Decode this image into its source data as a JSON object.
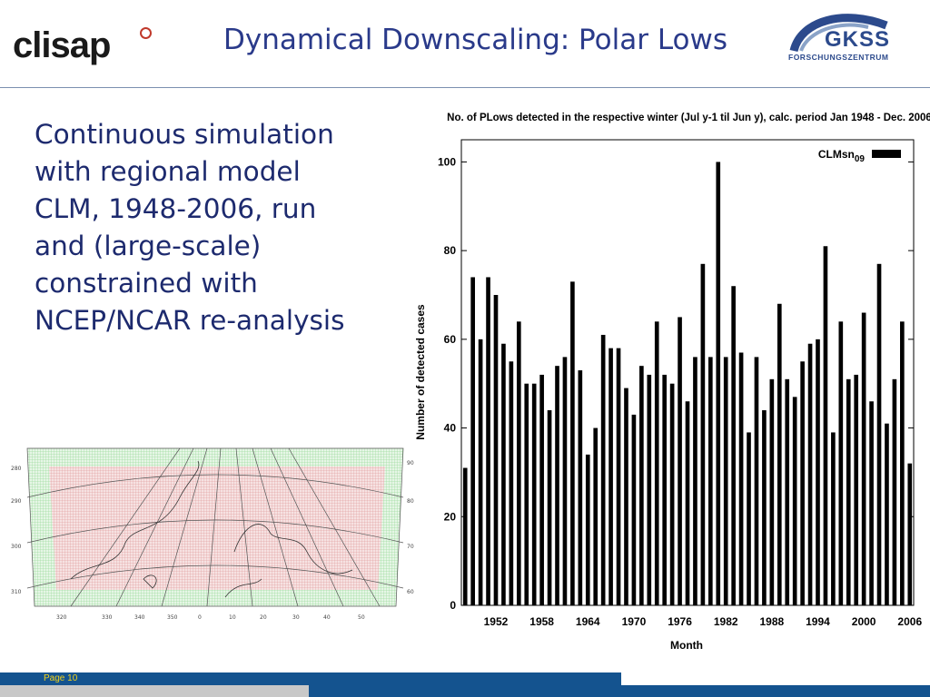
{
  "header": {
    "left_logo": "clisap",
    "title": "Dynamical Downscaling: Polar Lows",
    "right_logo_main": "GKSS",
    "right_logo_sub": "FORSCHUNGSZENTRUM"
  },
  "body": {
    "lines": [
      "Continuous simulation",
      "with regional model",
      "CLM, 1948-2006, run",
      "and (large-scale)",
      "constrained with",
      "NCEP/NCAR re-analysis"
    ]
  },
  "footer": {
    "page_label": "Page 10"
  },
  "colors": {
    "title": "#2a3a8a",
    "bars": "#000000",
    "footer_blue": "#14538f",
    "footer_gray": "#c8c8c8",
    "page_text": "#f2d21a"
  },
  "chart_data": {
    "type": "bar",
    "title": "No. of PLows detected in the respective winter (Jul y-1 til Jun y), calc. period Jan 1948 - Dec. 2006",
    "xlabel": "Month",
    "ylabel": "Number of detected cases",
    "ylim": [
      0,
      105
    ],
    "yticks": [
      0,
      20,
      40,
      60,
      80,
      100
    ],
    "xticks": [
      1952,
      1958,
      1964,
      1970,
      1976,
      1982,
      1988,
      1994,
      2000,
      2006
    ],
    "xrange": [
      1948,
      2006
    ],
    "grid": false,
    "legend_position": "top-right",
    "series": [
      {
        "name": "CLMsn09",
        "x": [
          1948,
          1949,
          1950,
          1951,
          1952,
          1953,
          1954,
          1955,
          1956,
          1957,
          1958,
          1959,
          1960,
          1961,
          1962,
          1963,
          1964,
          1965,
          1966,
          1967,
          1968,
          1969,
          1970,
          1971,
          1972,
          1973,
          1974,
          1975,
          1976,
          1977,
          1978,
          1979,
          1980,
          1981,
          1982,
          1983,
          1984,
          1985,
          1986,
          1987,
          1988,
          1989,
          1990,
          1991,
          1992,
          1993,
          1994,
          1995,
          1996,
          1997,
          1998,
          1999,
          2000,
          2001,
          2002,
          2003,
          2004,
          2005,
          2006
        ],
        "values": [
          31,
          74,
          60,
          74,
          70,
          59,
          55,
          64,
          50,
          50,
          52,
          44,
          54,
          56,
          73,
          53,
          34,
          40,
          61,
          58,
          58,
          49,
          43,
          54,
          52,
          64,
          52,
          50,
          65,
          46,
          56,
          77,
          56,
          100,
          56,
          72,
          57,
          39,
          56,
          44,
          51,
          68,
          51,
          47,
          55,
          59,
          60,
          81,
          39,
          64,
          51,
          52,
          66,
          46,
          77,
          41,
          51,
          64,
          32
        ]
      }
    ]
  }
}
